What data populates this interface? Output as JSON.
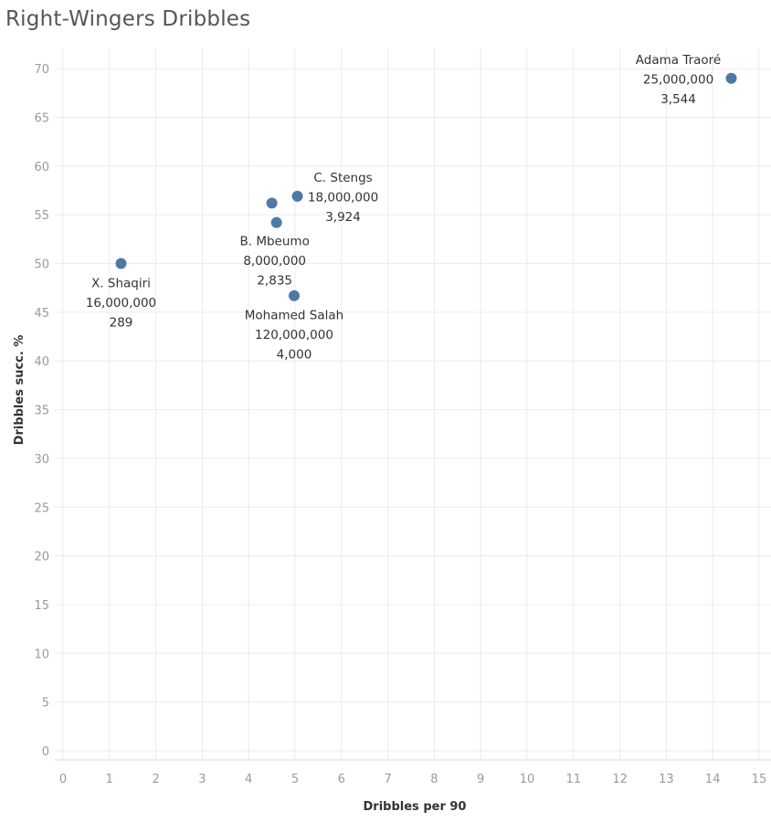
{
  "chart_data": {
    "type": "scatter",
    "title": "Right-Wingers Dribbles",
    "xlabel": "Dribbles per 90",
    "ylabel": "Dribbles succ. %",
    "xlim": [
      0,
      15
    ],
    "ylim": [
      0,
      72
    ],
    "xticks": [
      0,
      1,
      2,
      3,
      4,
      5,
      6,
      7,
      8,
      9,
      10,
      11,
      12,
      13,
      14,
      15
    ],
    "yticks": [
      0,
      5,
      10,
      15,
      20,
      25,
      30,
      35,
      40,
      45,
      50,
      55,
      60,
      65,
      70
    ],
    "grid": true,
    "marker_color": "#4e79a7",
    "points": [
      {
        "name": "Adama Traoré",
        "x": 14.4,
        "y": 69.0,
        "value": "25,000,000",
        "count": "3,544",
        "label_side": "left"
      },
      {
        "name": "C. Stengs",
        "x": 5.05,
        "y": 56.9,
        "value": "18,000,000",
        "count": "3,924",
        "label_side": "right"
      },
      {
        "name": "",
        "x": 4.5,
        "y": 56.2,
        "value": "",
        "count": "",
        "label_side": "none"
      },
      {
        "name": "B. Mbeumo",
        "x": 4.6,
        "y": 54.2,
        "value": "8,000,000",
        "count": "2,835",
        "label_side": "below-left"
      },
      {
        "name": "X. Shaqiri",
        "x": 1.25,
        "y": 50.0,
        "value": "16,000,000",
        "count": "289",
        "label_side": "below"
      },
      {
        "name": "Mohamed Salah",
        "x": 4.98,
        "y": 46.7,
        "value": "120,000,000",
        "count": "4,000",
        "label_side": "below"
      }
    ]
  }
}
